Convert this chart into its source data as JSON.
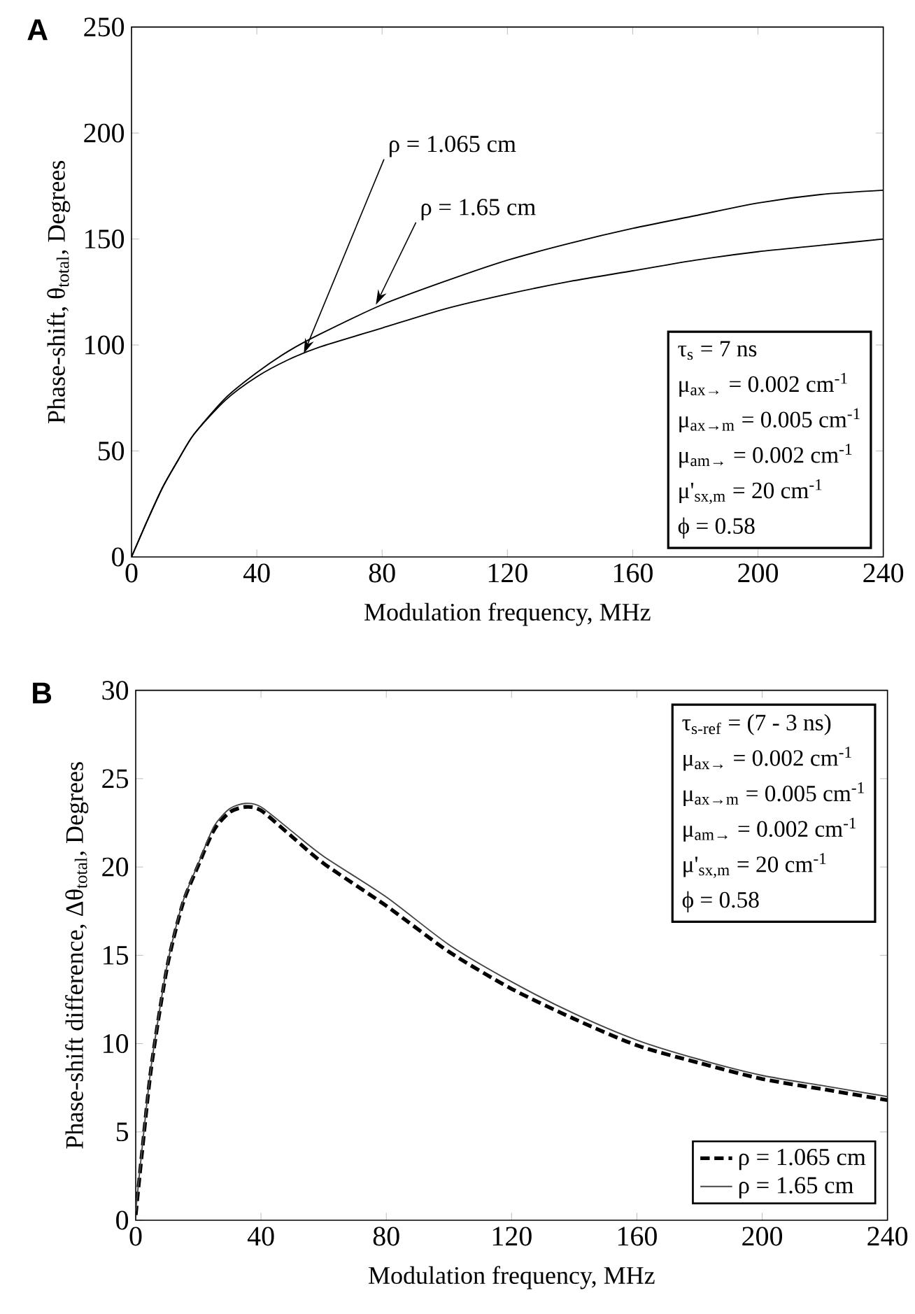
{
  "chart_data": [
    {
      "type": "line",
      "xlabel": "Modulation frequency, MHz",
      "ylabel": "Phase-shift, θ$_{total}$, Degrees",
      "xlim": [
        0,
        240
      ],
      "ylim": [
        0,
        250
      ],
      "xticks": [
        0,
        40,
        80,
        120,
        160,
        200,
        240
      ],
      "yticks": [
        0,
        50,
        100,
        150,
        200,
        250
      ],
      "legend": false,
      "line_style": "solid",
      "annotations": [
        "A",
        {
          "text": "ρ = 1.065 cm",
          "x": 55,
          "y": 96
        },
        {
          "text": "ρ = 1.65 cm",
          "x": 78,
          "y": 119
        },
        "τ$_{s}$ = 7 ns",
        "μ$_{ax→}$ = 0.002 cm$^{-1}$",
        "μ$_{ax→m}$ = 0.005 cm$^{-1}$",
        "μ$_{am→}$ = 0.002 cm$^{-1}$",
        "μ'$_{sx,m}$ = 20 cm$^{-1}$",
        "ϕ = 0.58"
      ],
      "series": [
        {
          "color": "#000000",
          "x": [
            0,
            5,
            10,
            15,
            20,
            30,
            40,
            50,
            60,
            80,
            100,
            120,
            140,
            160,
            180,
            200,
            220,
            240
          ],
          "values": [
            0,
            17,
            33,
            46,
            58,
            75,
            87,
            97,
            105,
            119,
            130,
            140,
            148,
            155,
            161,
            167,
            171,
            173
          ]
        },
        {
          "color": "#000000",
          "x": [
            0,
            5,
            10,
            15,
            20,
            30,
            40,
            50,
            60,
            80,
            100,
            120,
            140,
            160,
            180,
            200,
            220,
            240
          ],
          "values": [
            0,
            17,
            33,
            46,
            58,
            74,
            85,
            93,
            99,
            108,
            117,
            124,
            130,
            135,
            140,
            144,
            147,
            150
          ]
        }
      ]
    },
    {
      "type": "line",
      "xlabel": "Modulation frequency, MHz",
      "ylabel": "Phase-shift difference, Δθ$_{total}$, Degrees",
      "xlim": [
        0,
        240
      ],
      "ylim": [
        0,
        30
      ],
      "xticks": [
        0,
        40,
        80,
        120,
        160,
        200,
        240
      ],
      "yticks": [
        0,
        5,
        10,
        15,
        20,
        25,
        30
      ],
      "legend": "bottom right",
      "annotations": [
        "B",
        "τ$_{s-ref}$ = (7 - 3 ns)",
        "μ$_{ax→}$ = 0.002 cm$^{-1}$",
        "μ$_{ax→m}$ = 0.005 cm$^{-1}$",
        "μ$_{am→}$ = 0.002 cm$^{-1}$",
        "μ'$_{sx,m}$ = 20 cm$^{-1}$",
        "ϕ = 0.58"
      ],
      "series": [
        {
          "name": "ρ = 1.065 cm",
          "color": "#000000",
          "line_style": "dashed",
          "x": [
            0,
            2,
            5,
            10,
            15,
            20,
            25,
            30,
            35,
            40,
            50,
            60,
            80,
            100,
            120,
            140,
            160,
            180,
            200,
            220,
            240
          ],
          "values": [
            0.3,
            3.8,
            8.7,
            14.3,
            17.9,
            20.1,
            22.1,
            23.1,
            23.4,
            23.2,
            21.7,
            20.2,
            17.8,
            15.2,
            13.1,
            11.4,
            9.9,
            8.9,
            8.0,
            7.4,
            6.8
          ]
        },
        {
          "name": "ρ = 1.65 cm",
          "color": "#444444",
          "line_style": "solid",
          "x": [
            0,
            2,
            5,
            10,
            15,
            20,
            25,
            30,
            35,
            40,
            50,
            60,
            80,
            100,
            120,
            140,
            160,
            180,
            200,
            220,
            240
          ],
          "values": [
            0.5,
            4,
            8.8,
            14.4,
            18,
            20.2,
            22.3,
            23.3,
            23.6,
            23.4,
            22,
            20.6,
            18.3,
            15.6,
            13.5,
            11.7,
            10.2,
            9.1,
            8.2,
            7.6,
            7.0
          ]
        }
      ]
    }
  ]
}
